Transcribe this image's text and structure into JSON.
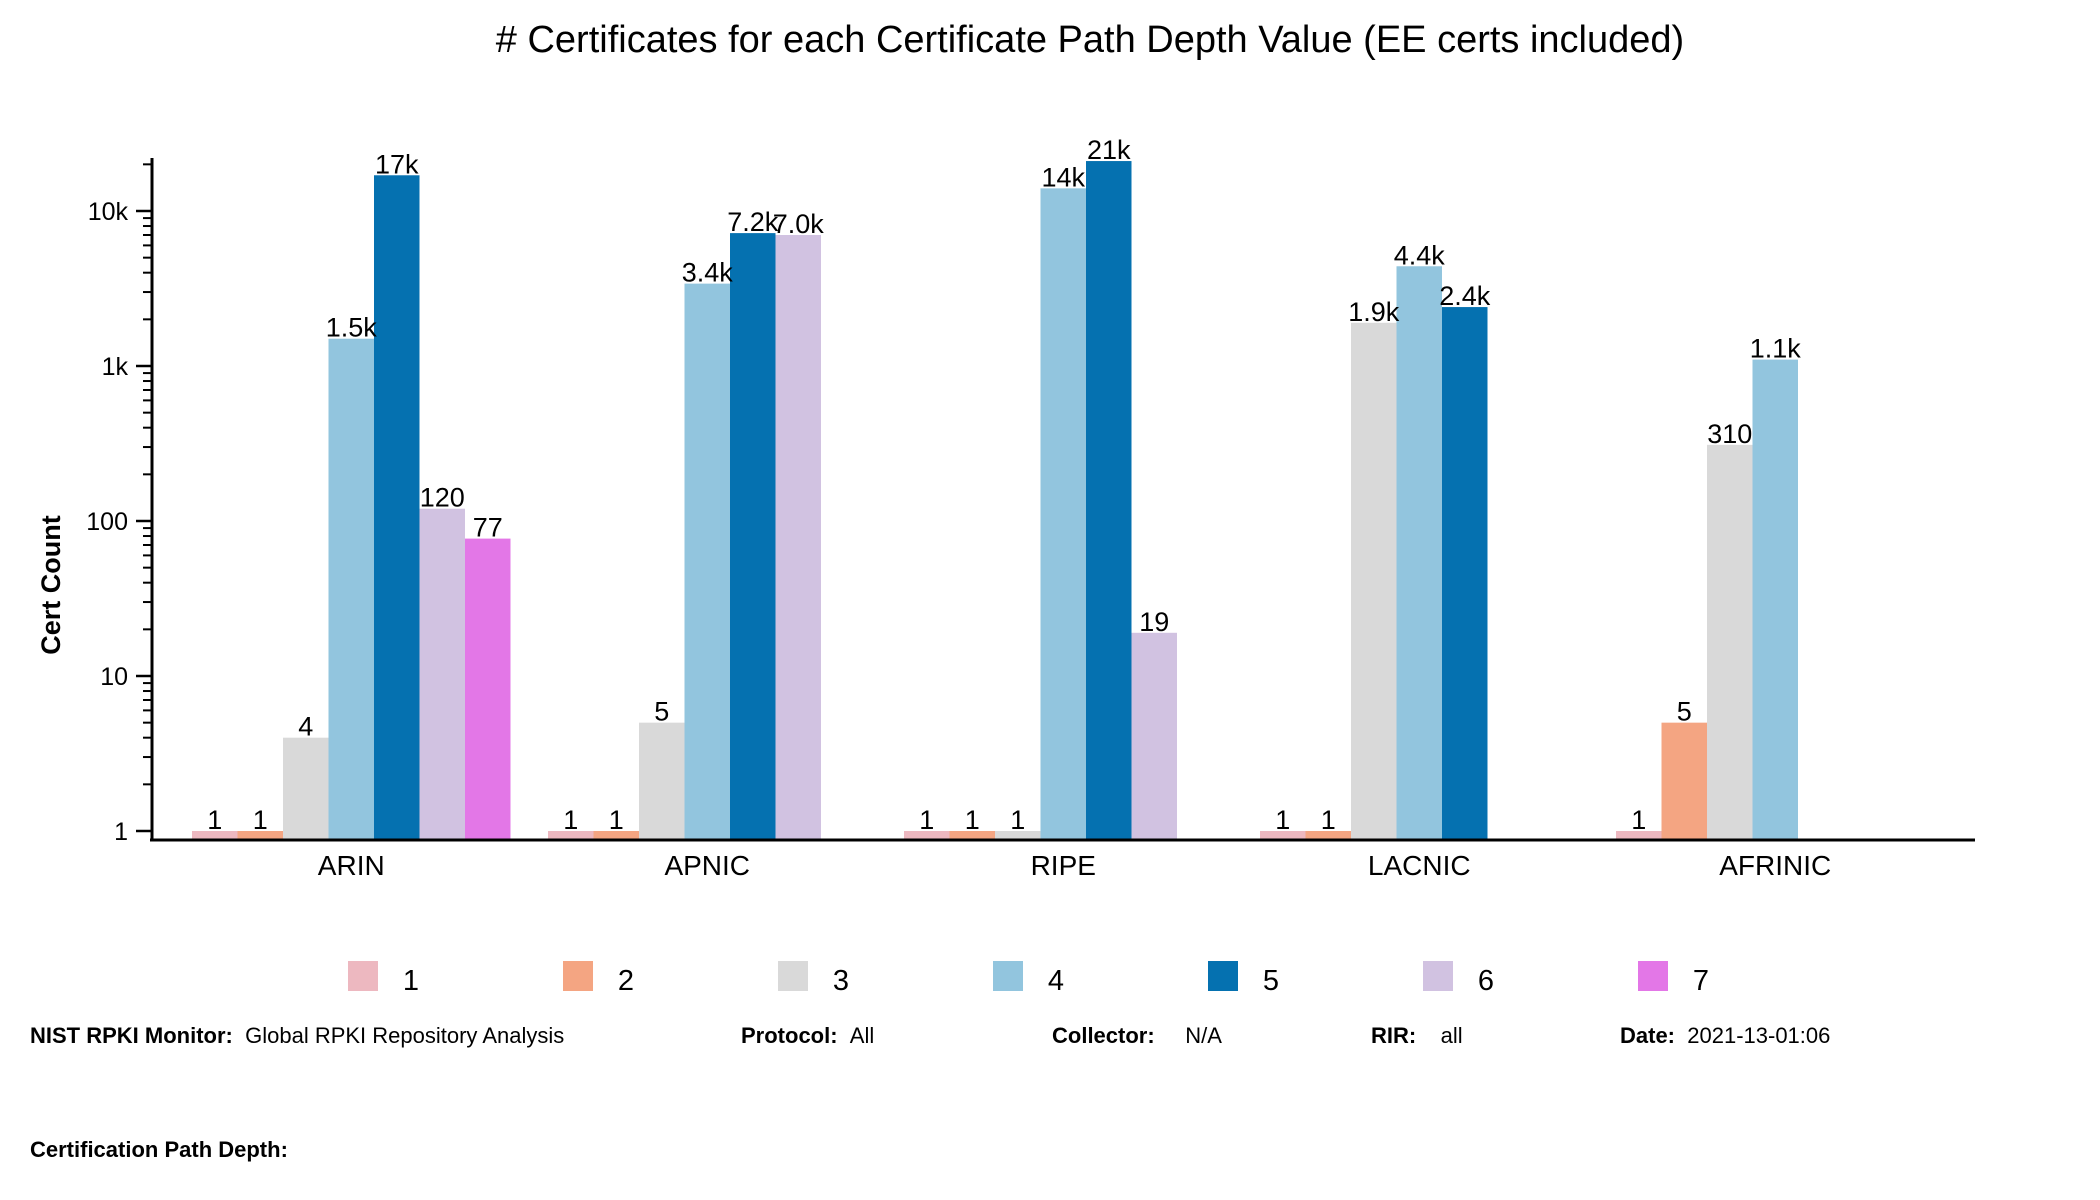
{
  "chart_data": {
    "type": "bar",
    "title": "# Certificates for each Certificate Path Depth Value (EE certs included)",
    "xlabel": "",
    "ylabel": "Cert Count",
    "yscale": "log",
    "ylim": [
      0.9,
      22000
    ],
    "yticks": [
      {
        "value": 1,
        "label": "1"
      },
      {
        "value": 10,
        "label": "10"
      },
      {
        "value": 100,
        "label": "100"
      },
      {
        "value": 1000,
        "label": "1k"
      },
      {
        "value": 10000,
        "label": "10k"
      }
    ],
    "categories": [
      "ARIN",
      "APNIC",
      "RIPE",
      "LACNIC",
      "AFRINIC"
    ],
    "legend_position": "bottom",
    "grid": false,
    "series": [
      {
        "name": "1",
        "color": "#EDB8C0",
        "values": [
          1,
          1,
          1,
          1,
          1
        ],
        "labels": [
          "1",
          "1",
          "1",
          "1",
          "1"
        ]
      },
      {
        "name": "2",
        "color": "#F4A582",
        "values": [
          1,
          1,
          1,
          1,
          5
        ],
        "labels": [
          "1",
          "1",
          "1",
          "1",
          "5"
        ]
      },
      {
        "name": "3",
        "color": "#D9D9D9",
        "values": [
          4,
          5,
          1,
          1900,
          310
        ],
        "labels": [
          "4",
          "5",
          "1",
          "1.9k",
          "310"
        ]
      },
      {
        "name": "4",
        "color": "#92C5DE",
        "values": [
          1500,
          3400,
          14000,
          4400,
          1100
        ],
        "labels": [
          "1.5k",
          "3.4k",
          "14k",
          "4.4k",
          "1.1k"
        ]
      },
      {
        "name": "5",
        "color": "#0571B0",
        "values": [
          17000,
          7200,
          21000,
          2400,
          null
        ],
        "labels": [
          "17k",
          "7.2k",
          "21k",
          "2.4k",
          null
        ]
      },
      {
        "name": "6",
        "color": "#D1C2E1",
        "values": [
          120,
          7000,
          19,
          null,
          null
        ],
        "labels": [
          "120",
          "7.0k",
          "19",
          null,
          null
        ]
      },
      {
        "name": "7",
        "color": "#E377E7",
        "values": [
          77,
          null,
          null,
          null,
          null
        ],
        "labels": [
          "77",
          null,
          null,
          null,
          null
        ]
      }
    ]
  },
  "footer": {
    "monitor_label": "NIST RPKI Monitor:",
    "monitor_value": "Global RPKI Repository Analysis",
    "protocol_label": "Protocol:",
    "protocol_value": "All",
    "collector_label": "Collector:",
    "collector_value": "N/A",
    "rir_label": "RIR:",
    "rir_value": "all",
    "date_label": "Date:",
    "date_value": "2021-13-01:06",
    "depth_label": "Certification Path Depth:"
  }
}
